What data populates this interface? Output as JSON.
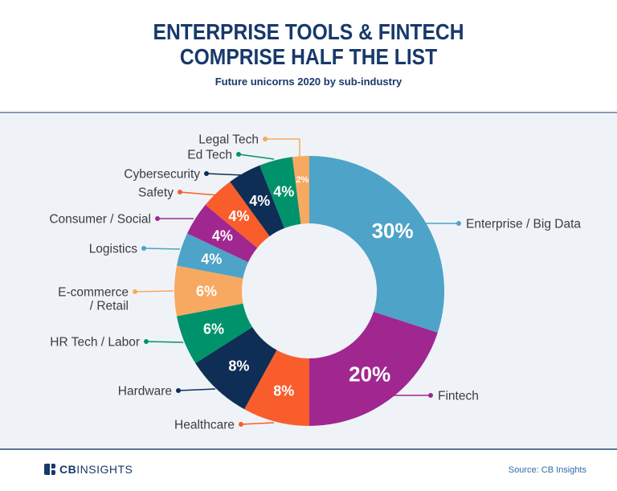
{
  "header": {
    "title_line1": "ENTERPRISE TOOLS & FINTECH",
    "title_line2": "COMPRISE HALF THE LIST",
    "subtitle": "Future unicorns 2020 by sub-industry"
  },
  "footer": {
    "logo_cb": "CB",
    "logo_insights": "INSIGHTS",
    "source": "Source: CB Insights"
  },
  "colors": {
    "title_navy": "#17396B",
    "label_gray": "#3C3C3E",
    "panel_bg": "#EFF3F7",
    "source_blue": "#2E6CA8"
  },
  "chart_data": {
    "type": "pie",
    "variant": "donut",
    "title": "Future unicorns 2020 by sub-industry",
    "start_at": "12 o'clock, clockwise",
    "inner_to_outer_ratio": 0.5,
    "slices": [
      {
        "label": "Enterprise / Big Data",
        "value": 30,
        "percent_label": "30%",
        "color": "#4EA3C8"
      },
      {
        "label": "Fintech",
        "value": 20,
        "percent_label": "20%",
        "color": "#A02790"
      },
      {
        "label": "Healthcare",
        "value": 8,
        "percent_label": "8%",
        "color": "#F95D2B"
      },
      {
        "label": "Hardware",
        "value": 8,
        "percent_label": "8%",
        "color": "#0E2E55"
      },
      {
        "label": "HR Tech / Labor",
        "value": 6,
        "percent_label": "6%",
        "color": "#00936B"
      },
      {
        "label": "E-commerce / Retail",
        "value": 6,
        "percent_label": "6%",
        "color": "#F7A961"
      },
      {
        "label": "Logistics",
        "value": 4,
        "percent_label": "4%",
        "color": "#4EA3C8"
      },
      {
        "label": "Consumer / Social",
        "value": 4,
        "percent_label": "4%",
        "color": "#A02790"
      },
      {
        "label": "Safety",
        "value": 4,
        "percent_label": "4%",
        "color": "#F95D2B"
      },
      {
        "label": "Cybersecurity",
        "value": 4,
        "percent_label": "4%",
        "color": "#0E2E55"
      },
      {
        "label": "Ed Tech",
        "value": 4,
        "percent_label": "4%",
        "color": "#00936B"
      },
      {
        "label": "Legal Tech",
        "value": 2,
        "percent_label": "2%",
        "color": "#F7A961"
      }
    ]
  }
}
